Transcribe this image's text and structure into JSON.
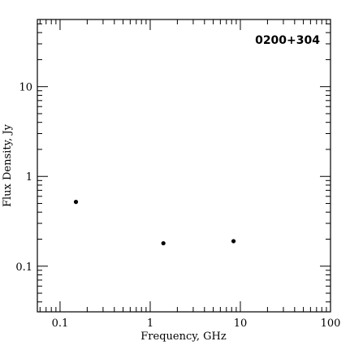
{
  "chart_data": {
    "type": "scatter",
    "title": "",
    "annotation": "0200+304",
    "xlabel": "Frequency, GHz",
    "ylabel": "Flux Density, Jy",
    "xscale": "log",
    "yscale": "log",
    "xlim": [
      0.056,
      100
    ],
    "ylim": [
      0.031,
      56
    ],
    "x_ticks": [
      {
        "value": 0.1,
        "label": "0.1"
      },
      {
        "value": 1,
        "label": "1"
      },
      {
        "value": 10,
        "label": "10"
      },
      {
        "value": 100,
        "label": "100"
      }
    ],
    "y_ticks": [
      {
        "value": 0.1,
        "label": "0.1"
      },
      {
        "value": 1,
        "label": "1"
      },
      {
        "value": 10,
        "label": "10"
      }
    ],
    "grid": false,
    "series": [
      {
        "x": [
          0.15,
          1.4,
          8.4
        ],
        "y": [
          0.52,
          0.18,
          0.19
        ]
      }
    ],
    "colors": {
      "marker": "#000000",
      "axis": "#000000"
    }
  }
}
